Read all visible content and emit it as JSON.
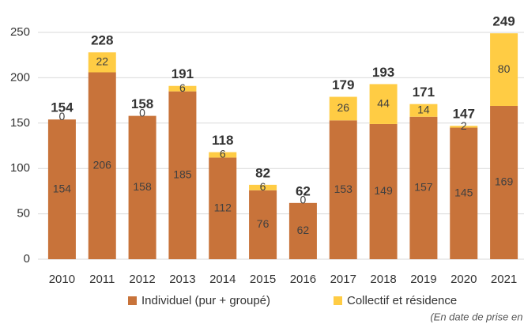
{
  "chart_data": {
    "type": "stacked_bar",
    "categories": [
      "2010",
      "2011",
      "2012",
      "2013",
      "2014",
      "2015",
      "2016",
      "2017",
      "2018",
      "2019",
      "2020",
      "2021"
    ],
    "series": [
      {
        "name": "Individuel (pur + groupé)",
        "color": "#c8733a",
        "values": [
          154,
          206,
          158,
          185,
          112,
          76,
          62,
          153,
          149,
          157,
          145,
          169
        ]
      },
      {
        "name": "Collectif et résidence",
        "color": "#ffcc44",
        "values": [
          0,
          22,
          0,
          6,
          6,
          6,
          0,
          26,
          44,
          14,
          2,
          80
        ]
      }
    ],
    "totals": [
      154,
      228,
      158,
      191,
      118,
      82,
      62,
      179,
      193,
      171,
      147,
      249
    ],
    "ylim": [
      0,
      250
    ],
    "yticks": [
      0,
      50,
      100,
      150,
      200,
      250
    ],
    "grid": true,
    "legend": "bottom",
    "note": "(En date de prise en compte)"
  }
}
